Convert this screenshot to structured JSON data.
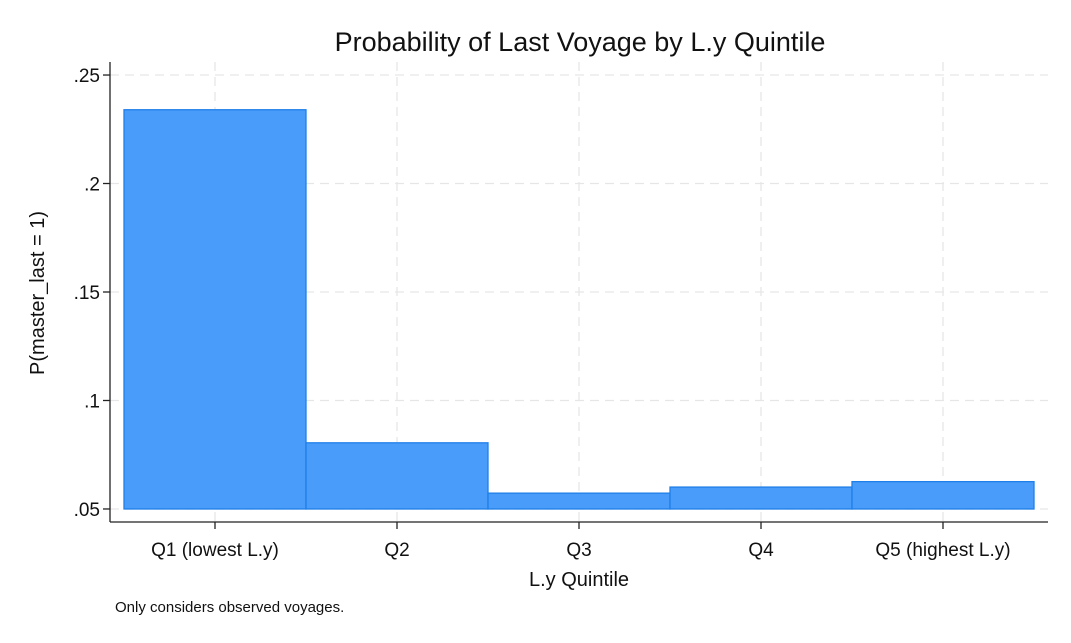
{
  "chart_data": {
    "type": "bar",
    "title": "Probability of Last Voyage by L.y Quintile",
    "xlabel": "L.y Quintile",
    "ylabel": "P(master_last = 1)",
    "note": "Only considers observed voyages.",
    "categories": [
      "Q1 (lowest L.y)",
      "Q2",
      "Q3",
      "Q4",
      "Q5 (highest L.y)"
    ],
    "values": [
      0.234,
      0.0805,
      0.0573,
      0.0601,
      0.0626
    ],
    "base": 0.05,
    "ylim": [
      0.044,
      0.256
    ],
    "yticks": [
      0.05,
      0.1,
      0.15,
      0.2,
      0.25
    ],
    "ytick_labels": [
      ".05",
      ".1",
      ".15",
      ".2",
      ".25"
    ],
    "grid": true,
    "bar_color": "#4a9cfb"
  }
}
